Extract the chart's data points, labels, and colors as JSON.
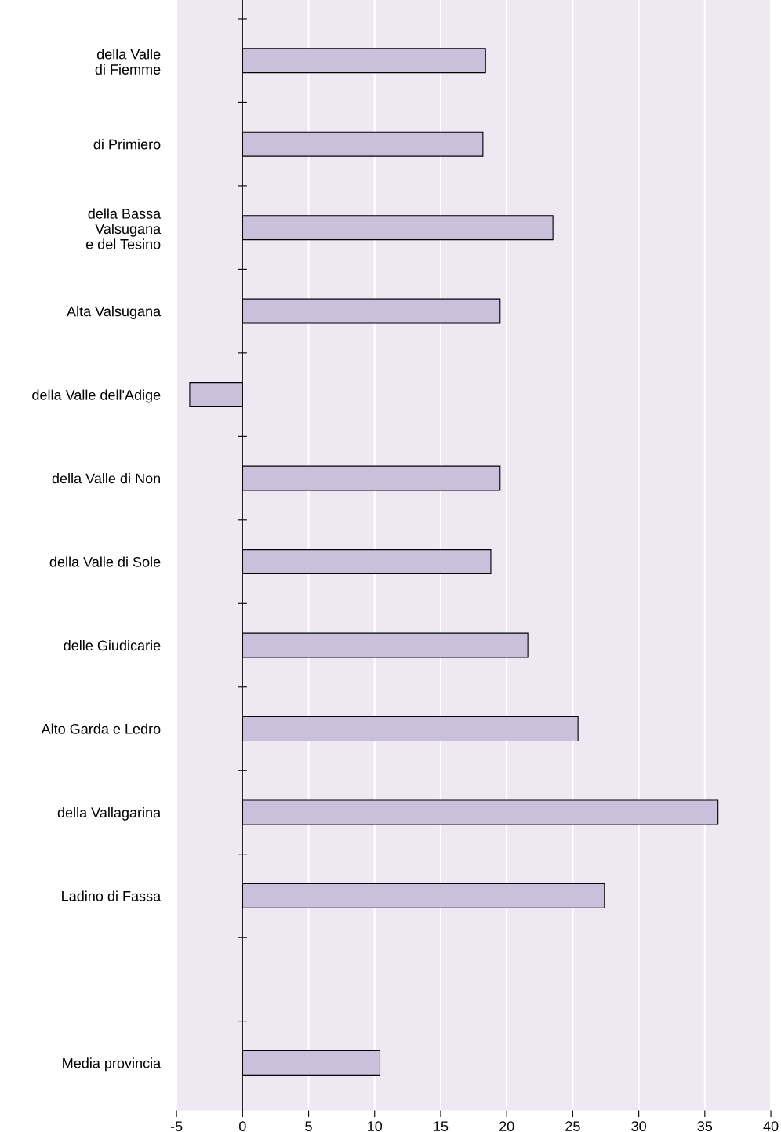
{
  "chart_data": {
    "type": "bar",
    "orientation": "horizontal",
    "categories": [
      "della Valle\ndi Fiemme",
      "di Primiero",
      "della Bassa\nValsugana\ne del Tesino",
      "Alta Valsugana",
      "della Valle dell'Adige",
      "della Valle di Non",
      "della Valle di Sole",
      "delle Giudicarie",
      "Alto Garda e Ledro",
      "della Vallagarina",
      "Ladino di Fassa",
      null,
      "Media provincia"
    ],
    "values": [
      18.4,
      18.2,
      23.5,
      19.5,
      -4.0,
      19.5,
      18.8,
      21.6,
      25.4,
      36.0,
      27.4,
      null,
      10.4
    ],
    "color": "#cbc0dc",
    "xlim": [
      -5,
      40
    ],
    "xticks": [
      -5,
      0,
      5,
      10,
      15,
      20,
      25,
      30,
      35,
      40
    ],
    "grid": "x"
  }
}
